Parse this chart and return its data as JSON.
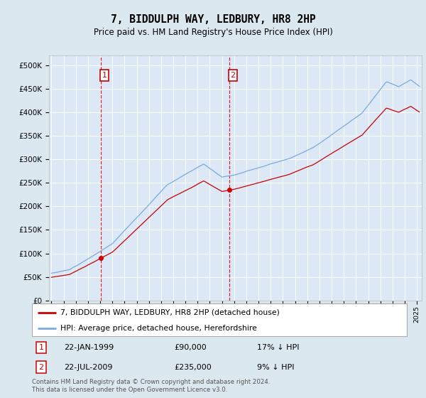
{
  "title": "7, BIDDULPH WAY, LEDBURY, HR8 2HP",
  "subtitle": "Price paid vs. HM Land Registry's House Price Index (HPI)",
  "bg_color": "#dce8f0",
  "plot_bg_color": "#dce8f5",
  "grid_color": "#ffffff",
  "red_line_color": "#cc0000",
  "blue_line_color": "#7aaadd",
  "marker1_t": 1999.05,
  "marker2_t": 2009.58,
  "marker1_price": 90000,
  "marker2_price": 235000,
  "marker1_pct": "17% ↓ HPI",
  "marker2_pct": "9% ↓ HPI",
  "marker1_date": "22-JAN-1999",
  "marker2_date": "22-JUL-2009",
  "legend1": "7, BIDDULPH WAY, LEDBURY, HR8 2HP (detached house)",
  "legend2": "HPI: Average price, detached house, Herefordshire",
  "footer": "Contains HM Land Registry data © Crown copyright and database right 2024.\nThis data is licensed under the Open Government Licence v3.0.",
  "ylim_max": 520000,
  "xlim_start": 1994.8,
  "xlim_end": 2025.4,
  "hpi_seed": 12,
  "red_seed": 7
}
